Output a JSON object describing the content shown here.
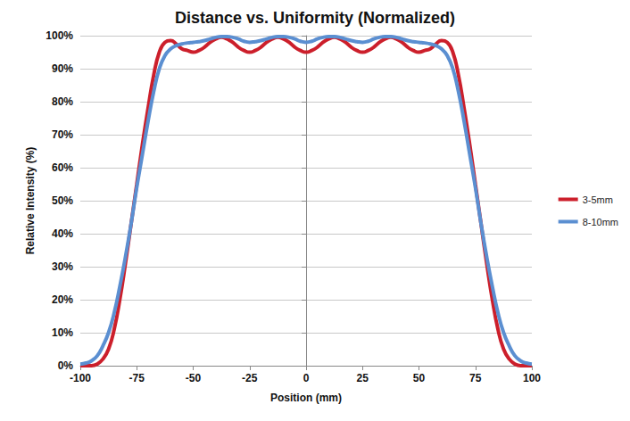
{
  "chart_data": {
    "type": "line",
    "title": "Distance vs. Uniformity (Normalized)",
    "x_label": "Position (mm)",
    "y_label": "Relative Intensity (%)",
    "x": [
      -100,
      -97.5,
      -95,
      -92.5,
      -90,
      -87.5,
      -85,
      -82.5,
      -80,
      -77.5,
      -75,
      -72.5,
      -70,
      -67.5,
      -65,
      -62.5,
      -60,
      -57.5,
      -55,
      -52.5,
      -50,
      -47.5,
      -45,
      -42.5,
      -40,
      -37.5,
      -35,
      -32.5,
      -30,
      -27.5,
      -25,
      -22.5,
      -20,
      -17.5,
      -15,
      -12.5,
      -10,
      -7.5,
      -5,
      -2.5,
      0,
      2.5,
      5,
      7.5,
      10,
      12.5,
      15,
      17.5,
      20,
      22.5,
      25,
      27.5,
      30,
      32.5,
      35,
      37.5,
      40,
      42.5,
      45,
      47.5,
      50,
      52.5,
      55,
      57.5,
      60,
      62.5,
      65,
      67.5,
      70,
      72.5,
      75,
      77.5,
      80,
      82.5,
      85,
      87.5,
      90,
      92.5,
      95,
      97.5,
      100
    ],
    "series": [
      {
        "name": "3-5mm",
        "color": "#cc1f2b",
        "values": [
          0,
          0,
          0,
          0.5,
          2,
          5,
          11,
          20,
          31,
          43,
          55,
          67,
          78,
          88,
          95,
          98,
          98.5,
          97.5,
          96,
          95.5,
          95,
          95.5,
          96.5,
          98,
          99,
          99.5,
          99,
          98,
          96.5,
          95.5,
          95,
          95.5,
          96.5,
          98,
          99,
          99.5,
          99,
          98,
          96.5,
          95.5,
          95,
          95.5,
          96.5,
          98,
          99,
          99.5,
          99,
          98,
          96.5,
          95.5,
          95,
          95.5,
          96.5,
          98,
          99,
          99.5,
          99,
          98,
          96.5,
          95.5,
          95,
          95.5,
          96,
          97.5,
          98.5,
          98,
          95,
          88,
          78,
          67,
          55,
          43,
          31,
          20,
          11,
          5,
          2,
          0.5,
          0,
          0,
          0
        ]
      },
      {
        "name": "8-10mm",
        "color": "#5b8fd1",
        "values": [
          0.5,
          0.8,
          1.5,
          3,
          6,
          10,
          16,
          24,
          33,
          43,
          54,
          64,
          74,
          83,
          90,
          94,
          96,
          97,
          97.5,
          97.8,
          98,
          98.2,
          98.5,
          99,
          99.5,
          99.7,
          99.7,
          99.5,
          99,
          98.3,
          98,
          98.2,
          98.5,
          99,
          99.5,
          99.7,
          99.7,
          99.5,
          99,
          98.3,
          98,
          98.3,
          99,
          99.5,
          99.7,
          99.7,
          99.5,
          99,
          98.5,
          98.2,
          98,
          98.3,
          99,
          99.5,
          99.7,
          99.7,
          99.5,
          99,
          98.5,
          98.2,
          98,
          97.8,
          97.5,
          97,
          96,
          94,
          90,
          83,
          74,
          64,
          54,
          43,
          33,
          24,
          16,
          10,
          6,
          3,
          1.5,
          0.8,
          0.5
        ]
      }
    ],
    "xlim": [
      -100,
      100
    ],
    "xticks": [
      -100,
      -75,
      -50,
      -25,
      0,
      25,
      50,
      75,
      100
    ],
    "ylim": [
      0,
      100
    ],
    "yticks": [
      {
        "value": 0,
        "label": "0%"
      },
      {
        "value": 10,
        "label": "10%"
      },
      {
        "value": 20,
        "label": "20%"
      },
      {
        "value": 30,
        "label": "30%"
      },
      {
        "value": 40,
        "label": "40%"
      },
      {
        "value": 50,
        "label": "50%"
      },
      {
        "value": 60,
        "label": "60%"
      },
      {
        "value": 70,
        "label": "70%"
      },
      {
        "value": 80,
        "label": "80%"
      },
      {
        "value": 90,
        "label": "90%"
      },
      {
        "value": 100,
        "label": "100%"
      }
    ],
    "grid": true,
    "legend": "right"
  }
}
